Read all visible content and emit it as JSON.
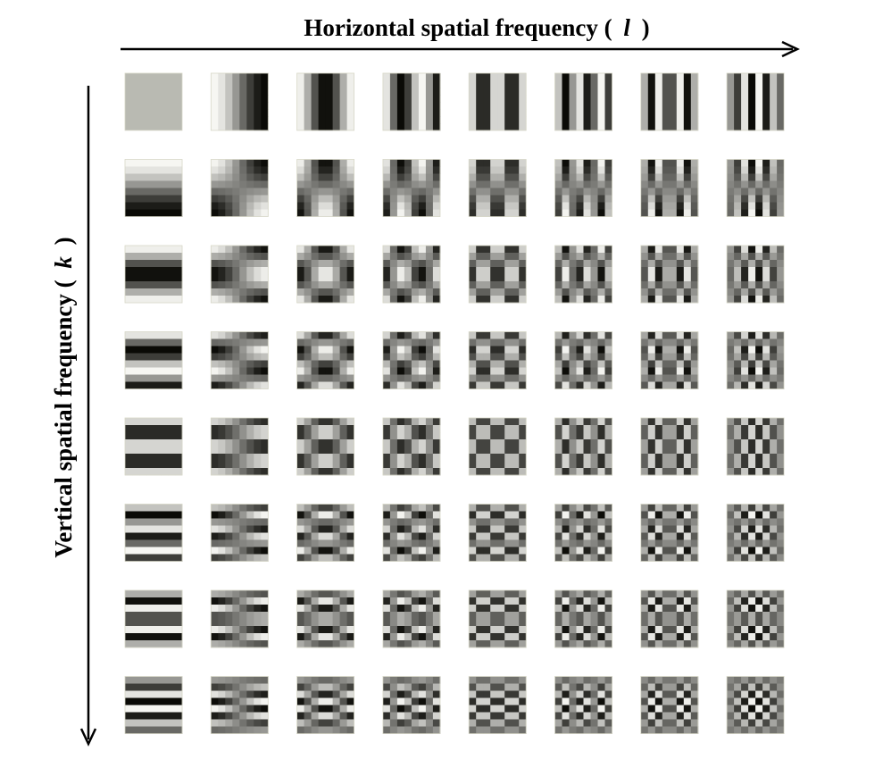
{
  "horizontal_axis": {
    "label_text": "Horizontal spatial frequency (",
    "variable": "l",
    "label_close": ")"
  },
  "vertical_axis": {
    "label_text": "Vertical spatial frequency (",
    "variable": "k",
    "label_close": ")"
  },
  "grid": {
    "rows": 8,
    "cols": 8,
    "block_resolution": 8,
    "pattern": "2D DCT basis functions, cosine product per block",
    "row_index_name": "k",
    "col_index_name": "l"
  },
  "colors": {
    "background": "#ffffff",
    "axis_line": "#000000",
    "dc_gray": "#b9bab2",
    "cell_border": "#d8d8c8"
  }
}
